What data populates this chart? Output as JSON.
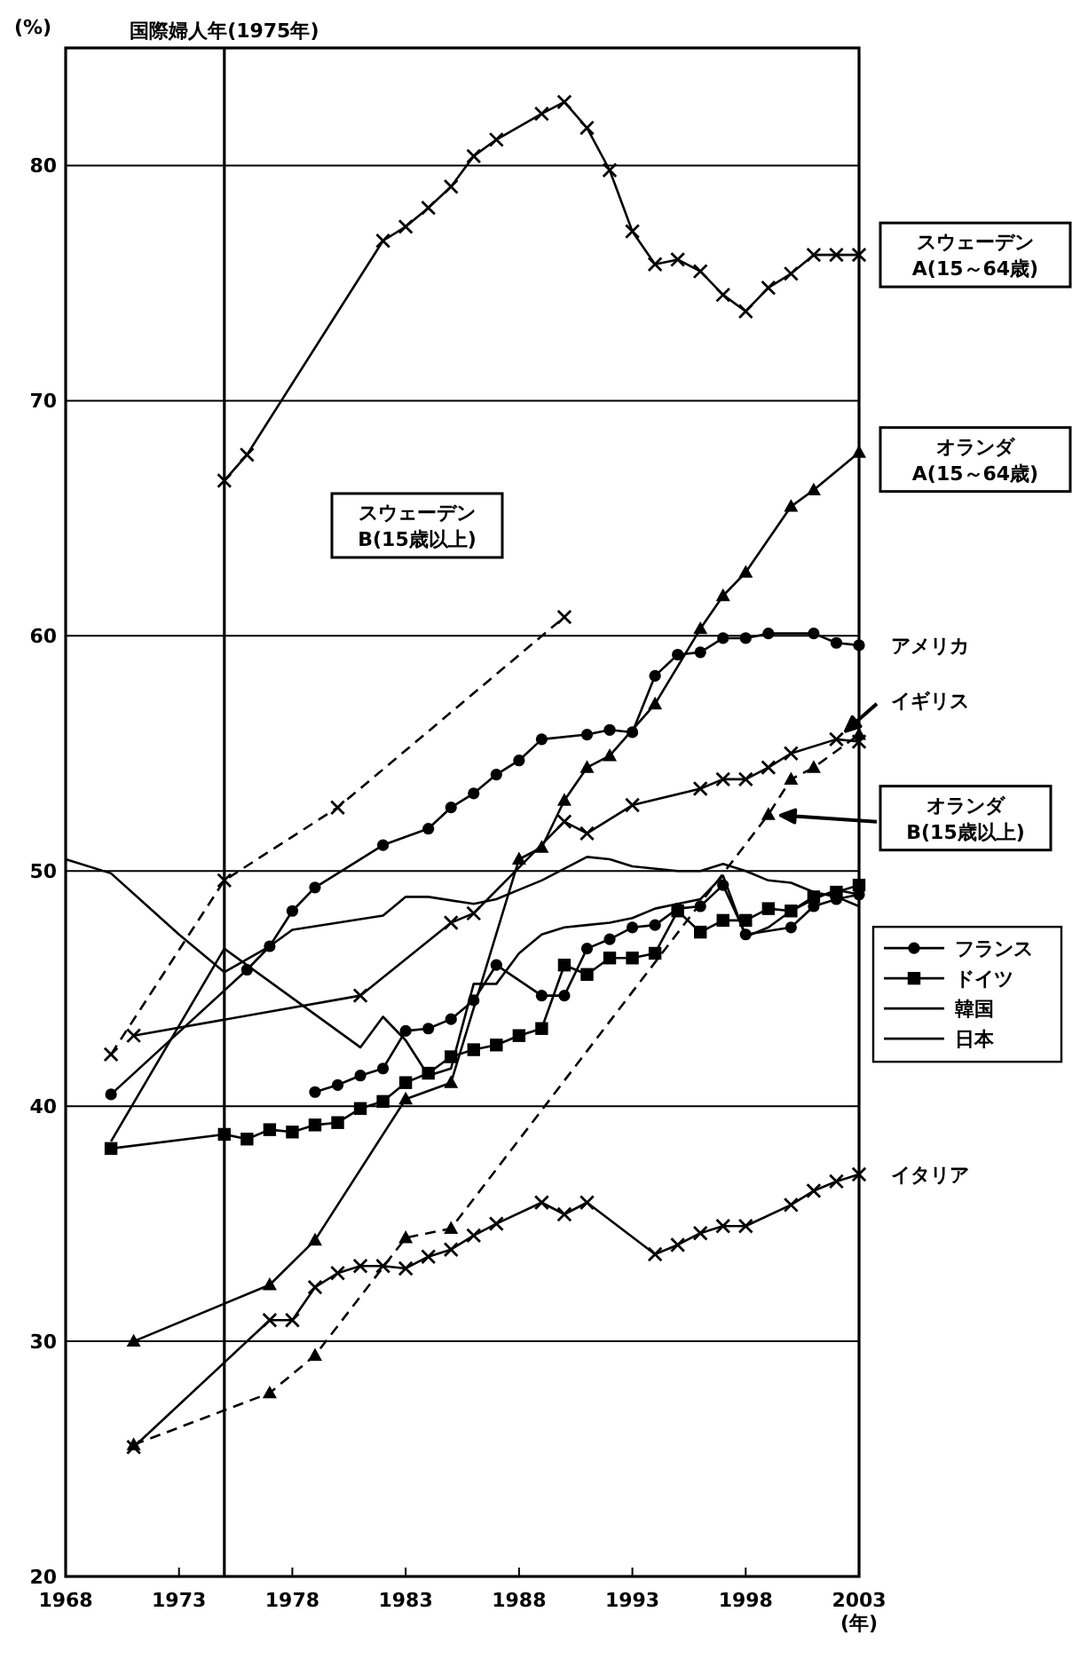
{
  "chart_data": {
    "type": "line",
    "ylabel": "(%)",
    "xlabel": "(年)",
    "xlim": [
      1968,
      2003
    ],
    "xticks": [
      1968,
      1973,
      1978,
      1983,
      1988,
      1993,
      1998,
      2003
    ],
    "ylim": [
      20,
      85
    ],
    "yticks": [
      20,
      30,
      40,
      50,
      60,
      70,
      80
    ],
    "grid": "y",
    "legend": "right",
    "ref_lines": [
      {
        "axis": "x",
        "value": 1975,
        "label": "国際婦人年(1975年)",
        "color": "#000000"
      }
    ],
    "series": [
      {
        "color": "#000000",
        "marker": "cross",
        "line_style": "solid",
        "x": [
          1975,
          1976,
          1982,
          1983,
          1984,
          1985,
          1986,
          1987,
          1989,
          1990,
          1991,
          1992,
          1993,
          1994,
          1995,
          1996,
          1997,
          1998,
          1999,
          2000,
          2001,
          2002,
          2003
        ],
        "values": [
          66.6,
          67.7,
          76.8,
          77.4,
          78.2,
          79.1,
          80.4,
          81.1,
          82.2,
          82.7,
          81.6,
          79.8,
          77.2,
          75.8,
          76.0,
          75.5,
          74.5,
          73.8,
          74.8,
          75.4,
          76.2,
          76.2,
          76.2
        ]
      },
      {
        "color": "#000000",
        "marker": "triangle",
        "line_style": "solid",
        "x": [
          1971,
          1977,
          1979,
          1983,
          1985,
          1988,
          1989,
          1990,
          1991,
          1992,
          1994,
          1996,
          1997,
          1998,
          2000,
          2001,
          2003
        ],
        "values": [
          30.0,
          32.4,
          34.3,
          40.3,
          41.0,
          50.5,
          51.0,
          53.0,
          54.4,
          54.9,
          57.1,
          60.3,
          61.7,
          62.7,
          65.5,
          66.2,
          67.8
        ]
      },
      {
        "color": "#000000",
        "marker": "cross",
        "line_style": "dashed",
        "x": [
          1970,
          1975,
          1980,
          1990
        ],
        "values": [
          42.2,
          49.6,
          52.7,
          60.8
        ]
      },
      {
        "color": "#000000",
        "marker": "circle",
        "line_style": "solid",
        "x": [
          1970,
          1976,
          1977,
          1978,
          1979,
          1982,
          1984,
          1985,
          1986,
          1987,
          1988,
          1989,
          1991,
          1992,
          1993,
          1994,
          1995,
          1996,
          1997,
          1998,
          1999,
          2001,
          2002,
          2003
        ],
        "values": [
          40.5,
          45.8,
          46.8,
          48.3,
          49.3,
          51.1,
          51.8,
          52.7,
          53.3,
          54.1,
          54.7,
          55.6,
          55.8,
          56.0,
          55.9,
          58.3,
          59.2,
          59.3,
          59.9,
          59.9,
          60.1,
          60.1,
          59.7,
          59.6
        ]
      },
      {
        "color": "#000000",
        "marker": "cross",
        "line_style": "solid",
        "x": [
          1971,
          1981,
          1985,
          1986,
          1990,
          1991,
          1993,
          1996,
          1997,
          1998,
          1999,
          2000,
          2002,
          2003
        ],
        "values": [
          43.0,
          44.7,
          47.8,
          48.2,
          52.1,
          51.6,
          52.8,
          53.5,
          53.9,
          53.9,
          54.4,
          55.0,
          55.6,
          55.5
        ]
      },
      {
        "color": "#000000",
        "marker": "triangle",
        "line_style": "dashed",
        "x": [
          1971,
          1977,
          1979,
          1983,
          1985,
          1999,
          2000,
          2001,
          2003
        ],
        "values": [
          25.6,
          27.8,
          29.4,
          34.4,
          34.8,
          52.4,
          53.9,
          54.4,
          55.8
        ]
      },
      {
        "color": "#000000",
        "marker": "cross",
        "line_style": "solid",
        "x": [
          1971,
          1977,
          1978,
          1979,
          1980,
          1981,
          1982,
          1983,
          1984,
          1985,
          1986,
          1987,
          1989,
          1990,
          1991,
          1994,
          1995,
          1996,
          1997,
          1998,
          2000,
          2001,
          2002,
          2003
        ],
        "values": [
          25.5,
          30.9,
          30.9,
          32.3,
          32.9,
          33.2,
          33.2,
          33.1,
          33.6,
          33.9,
          34.5,
          35.0,
          35.9,
          35.4,
          35.9,
          33.7,
          34.1,
          34.6,
          34.9,
          34.9,
          35.8,
          36.4,
          36.8,
          37.1
        ]
      },
      {
        "name": "フランス",
        "color": "#000000",
        "marker": "circle",
        "line_style": "solid",
        "x": [
          1979,
          1980,
          1981,
          1982,
          1983,
          1984,
          1985,
          1986,
          1987,
          1989,
          1990,
          1991,
          1992,
          1993,
          1994,
          1995,
          1996,
          1997,
          1998,
          2000,
          2001,
          2002,
          2003
        ],
        "values": [
          40.6,
          40.9,
          41.3,
          41.6,
          43.2,
          43.3,
          43.7,
          44.5,
          46.0,
          44.7,
          44.7,
          46.7,
          47.1,
          47.6,
          47.7,
          48.4,
          48.5,
          49.4,
          47.3,
          47.6,
          48.5,
          48.8,
          49.0
        ]
      },
      {
        "name": "ドイツ",
        "color": "#000000",
        "marker": "square",
        "line_style": "solid",
        "x": [
          1970,
          1975,
          1976,
          1977,
          1978,
          1979,
          1980,
          1981,
          1982,
          1983,
          1984,
          1985,
          1986,
          1987,
          1988,
          1989,
          1990,
          1991,
          1992,
          1993,
          1994,
          1995,
          1996,
          1997,
          1998,
          1999,
          2000,
          2001,
          2002,
          2003
        ],
        "values": [
          38.2,
          38.8,
          38.6,
          39.0,
          38.9,
          39.2,
          39.3,
          39.9,
          40.2,
          41.0,
          41.4,
          42.1,
          42.4,
          42.6,
          43.0,
          43.3,
          46.0,
          45.6,
          46.3,
          46.3,
          46.5,
          48.3,
          47.4,
          47.9,
          47.9,
          48.4,
          48.3,
          48.9,
          49.1,
          49.4
        ]
      },
      {
        "name": "韓国",
        "color": "#000000",
        "marker": "none",
        "line_style": "solid",
        "x": [
          1970,
          1975,
          1981,
          1982,
          1983,
          1984,
          1985,
          1986,
          1987,
          1988,
          1989,
          1990,
          1991,
          1992,
          1993,
          1994,
          1995,
          1996,
          1997,
          1998,
          1999,
          2000,
          2001,
          2002,
          2003
        ],
        "values": [
          38.5,
          46.7,
          42.5,
          43.8,
          42.8,
          41.3,
          41.6,
          45.2,
          45.2,
          46.5,
          47.3,
          47.6,
          47.7,
          47.8,
          48.0,
          48.4,
          48.6,
          48.8,
          49.8,
          47.2,
          47.6,
          48.3,
          48.8,
          49.2,
          49.0
        ]
      },
      {
        "name": "日本",
        "color": "#000000",
        "marker": "none",
        "line_style": "solid",
        "x": [
          1968,
          1970,
          1973,
          1975,
          1977,
          1978,
          1982,
          1983,
          1984,
          1986,
          1987,
          1988,
          1989,
          1991,
          1992,
          1993,
          1995,
          1996,
          1997,
          1998,
          1999,
          2000,
          2001,
          2002,
          2003
        ],
        "values": [
          50.5,
          49.9,
          47.3,
          45.7,
          46.8,
          47.5,
          48.1,
          48.9,
          48.9,
          48.6,
          48.8,
          49.2,
          49.6,
          50.6,
          50.5,
          50.2,
          50.0,
          50.0,
          50.3,
          50.0,
          49.6,
          49.5,
          49.1,
          48.9,
          48.5
        ]
      }
    ],
    "annotations": [
      "スウェーデン\nA(15～64歳)",
      "オランダ\nA(15～64歳)",
      "スウェーデン\nB(15歳以上)",
      "アメリカ",
      "イギリス",
      "オランダ\nB(15歳以上)",
      "イタリア"
    ]
  }
}
